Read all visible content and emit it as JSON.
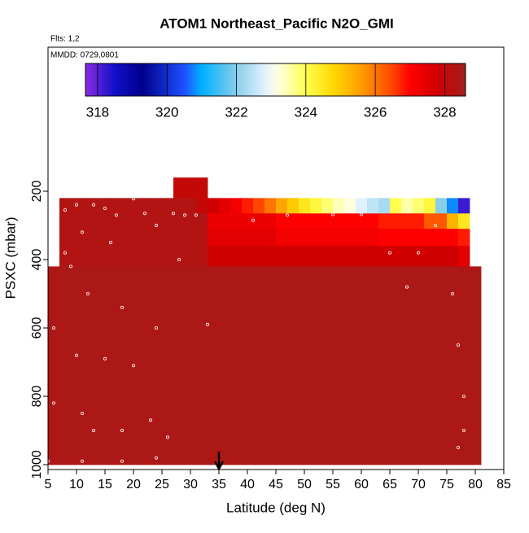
{
  "chart_data": {
    "type": "heatmap",
    "title": "ATOM1 Northeast_Pacific N2O_GMI",
    "subtitle": "Flts: 1,2",
    "annotation": "MMDD: 0729,0801",
    "x_label": "Latitude (deg N)",
    "y_label": "PSXC (mbar)",
    "xlim": [
      5,
      85
    ],
    "xticks": [
      5,
      10,
      15,
      20,
      25,
      30,
      35,
      40,
      45,
      50,
      55,
      60,
      65,
      70,
      75,
      80,
      85
    ],
    "ylim": [
      1014.3,
      -221.4
    ],
    "yticks": [
      200,
      400,
      600,
      800,
      1000
    ],
    "x_edges": [
      5,
      7,
      9,
      11,
      13,
      15,
      17,
      19,
      21,
      23,
      25,
      27,
      29,
      31,
      33,
      35,
      37,
      39,
      41,
      43,
      45,
      47,
      49,
      51,
      53,
      55,
      57,
      59,
      61,
      63,
      65,
      67,
      69,
      71,
      73,
      75,
      77,
      79,
      81
    ],
    "y_edges": [
      160,
      220,
      265,
      310,
      360,
      420,
      1000
    ],
    "values": [
      [
        null,
        null,
        null,
        null,
        null,
        null,
        null,
        null,
        null,
        null,
        null,
        328.0,
        328.0,
        328.0,
        null,
        null,
        null,
        null,
        null,
        null,
        null,
        null,
        null,
        null,
        null,
        null,
        null,
        null,
        null,
        null,
        null,
        null,
        null,
        null,
        null,
        null,
        null,
        null
      ],
      [
        null,
        328.3,
        328.3,
        328.3,
        328.3,
        328.3,
        328.3,
        328.3,
        328.3,
        328.3,
        328.3,
        328.3,
        328.3,
        328.0,
        327.8,
        327.5,
        327.2,
        326.8,
        326.5,
        326.0,
        325.5,
        325.0,
        324.5,
        324.2,
        323.8,
        323.4,
        323.2,
        322.8,
        322.5,
        322.3,
        324.0,
        323.5,
        323.8,
        324.2,
        322.0,
        320.8,
        318.2,
        null
      ],
      [
        null,
        328.3,
        328.3,
        328.3,
        328.3,
        328.3,
        328.3,
        328.3,
        328.3,
        328.3,
        328.3,
        328.3,
        328.3,
        328.3,
        327.3,
        327.3,
        327.3,
        327.3,
        327.3,
        327.3,
        327.0,
        327.0,
        327.0,
        327.0,
        327.0,
        327.0,
        327.0,
        327.0,
        327.0,
        326.8,
        326.8,
        326.8,
        326.8,
        326.3,
        326.3,
        325.3,
        324.5,
        null
      ],
      [
        null,
        328.3,
        328.3,
        328.3,
        328.3,
        328.3,
        328.3,
        328.3,
        328.3,
        328.3,
        328.3,
        328.3,
        328.3,
        328.3,
        327.5,
        327.5,
        327.5,
        327.5,
        327.5,
        327.5,
        327.2,
        327.2,
        327.2,
        327.2,
        327.2,
        327.2,
        327.2,
        327.2,
        327.2,
        327.0,
        327.0,
        327.0,
        327.0,
        327.0,
        327.0,
        327.0,
        326.8,
        null
      ],
      [
        null,
        328.3,
        328.3,
        328.3,
        328.3,
        328.3,
        328.3,
        328.3,
        328.3,
        328.3,
        328.3,
        328.3,
        328.3,
        328.3,
        327.8,
        327.8,
        327.8,
        327.8,
        327.8,
        327.8,
        327.8,
        327.8,
        327.8,
        327.8,
        327.8,
        327.8,
        327.8,
        327.8,
        327.8,
        327.8,
        327.8,
        327.8,
        327.8,
        327.8,
        327.8,
        327.8,
        327.5,
        null
      ],
      [
        328.4,
        328.4,
        328.4,
        328.4,
        328.4,
        328.4,
        328.4,
        328.4,
        328.4,
        328.4,
        328.4,
        328.4,
        328.4,
        328.4,
        328.4,
        328.4,
        328.4,
        328.4,
        328.4,
        328.4,
        328.4,
        328.4,
        328.4,
        328.4,
        328.4,
        328.4,
        328.4,
        328.4,
        328.4,
        328.4,
        328.4,
        328.4,
        328.4,
        328.4,
        328.4,
        328.4,
        328.4,
        328.4
      ]
    ],
    "clim": [
      317.65,
      328.6
    ],
    "cticks": [
      318,
      320,
      322,
      324,
      326,
      328
    ],
    "colormap": [
      {
        "value": 317.65,
        "color": "#8a2be2"
      },
      {
        "value": 318.5,
        "color": "#1010c8"
      },
      {
        "value": 319.3,
        "color": "#00008b"
      },
      {
        "value": 320.5,
        "color": "#1e50ff"
      },
      {
        "value": 321.0,
        "color": "#00b0ff"
      },
      {
        "value": 322.0,
        "color": "#87ceeb"
      },
      {
        "value": 322.8,
        "color": "#e0f0ff"
      },
      {
        "value": 323.2,
        "color": "#ffffe0"
      },
      {
        "value": 324.0,
        "color": "#ffff50"
      },
      {
        "value": 324.8,
        "color": "#ffd700"
      },
      {
        "value": 325.5,
        "color": "#ffa500"
      },
      {
        "value": 326.5,
        "color": "#ff4500"
      },
      {
        "value": 327.0,
        "color": "#ff0000"
      },
      {
        "value": 327.8,
        "color": "#d00000"
      },
      {
        "value": 328.6,
        "color": "#a0201e"
      }
    ],
    "points": {
      "color": "#ffffff",
      "x": [
        6,
        8,
        10,
        13,
        15,
        17,
        20,
        22,
        24,
        27,
        29,
        31,
        8,
        11,
        12,
        16,
        9,
        6,
        10,
        11,
        18,
        15,
        20,
        13,
        18,
        23,
        26,
        24,
        28,
        33,
        41,
        47,
        55,
        60,
        65,
        68,
        70,
        73,
        76,
        77,
        78,
        78,
        77,
        5,
        11,
        18,
        24,
        6
      ],
      "y": [
        270,
        255,
        240,
        240,
        250,
        270,
        222,
        265,
        300,
        265,
        270,
        270,
        380,
        320,
        500,
        350,
        420,
        600,
        680,
        850,
        540,
        690,
        710,
        900,
        900,
        870,
        920,
        600,
        400,
        590,
        285,
        270,
        268,
        268,
        380,
        480,
        380,
        300,
        500,
        650,
        800,
        900,
        950,
        990,
        990,
        990,
        980,
        820
      ]
    },
    "arrow_lat": 35
  }
}
